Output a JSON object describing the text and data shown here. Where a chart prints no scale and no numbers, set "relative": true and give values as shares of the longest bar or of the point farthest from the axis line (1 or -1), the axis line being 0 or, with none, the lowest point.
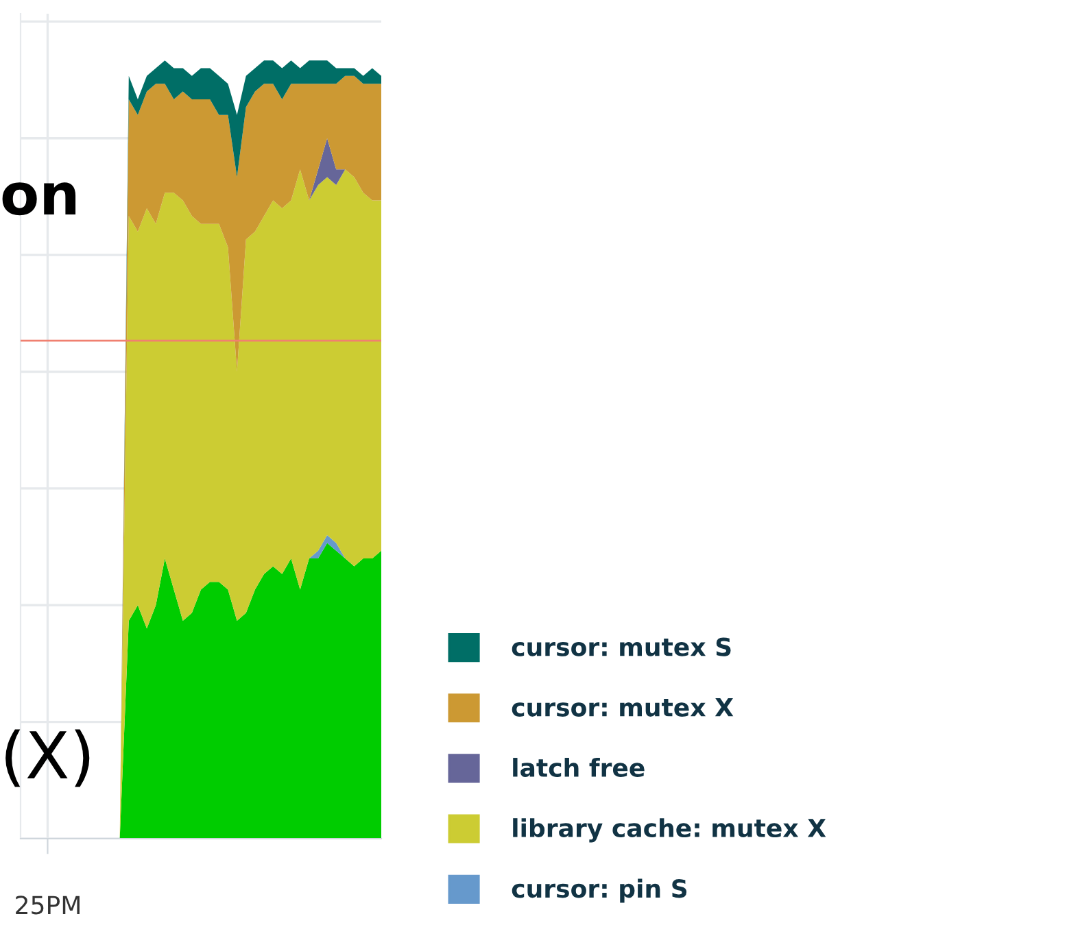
{
  "chart_data": {
    "type": "area",
    "stacked": true,
    "relative": true,
    "title": "on",
    "annotations": [
      "(X)",
      "25PM"
    ],
    "categories": [
      null,
      null,
      null,
      null,
      null,
      null,
      null,
      null,
      null,
      null,
      null,
      null,
      null,
      null,
      null,
      null,
      null,
      null,
      null,
      null,
      null,
      null,
      null,
      null,
      null,
      null,
      null,
      null,
      null,
      null,
      null,
      null,
      null,
      null,
      null,
      null,
      null,
      null
    ],
    "series": [
      {
        "color": "#00cc00",
        "values": [
          null,
          null,
          null,
          null,
          null,
          null,
          null,
          null,
          0,
          0.28,
          0.3,
          0.27,
          0.3,
          0.36,
          0.32,
          0.28,
          0.29,
          0.32,
          0.33,
          0.33,
          0.32,
          0.28,
          0.29,
          0.32,
          0.34,
          0.35,
          0.34,
          0.36,
          0.32,
          0.36,
          0.36,
          0.38,
          0.37,
          0.36,
          0.35,
          0.36,
          0.36,
          0.37
        ]
      },
      {
        "name": "cursor: pin S",
        "color": "#6699cc",
        "values": [
          null,
          null,
          null,
          null,
          null,
          null,
          null,
          null,
          0,
          0,
          0,
          0,
          0,
          0,
          0,
          0,
          0,
          0,
          0,
          0,
          0,
          0,
          0,
          0,
          0,
          0,
          0,
          0,
          0,
          0,
          0.01,
          0.01,
          0.01,
          0,
          0,
          0,
          0,
          0
        ]
      },
      {
        "name": "library cache: mutex X",
        "color": "#cccc33",
        "values": [
          null,
          null,
          null,
          null,
          null,
          null,
          null,
          null,
          0,
          0.52,
          0.48,
          0.54,
          0.49,
          0.47,
          0.51,
          0.54,
          0.51,
          0.47,
          0.46,
          0.46,
          0.44,
          0.32,
          0.48,
          0.46,
          0.46,
          0.47,
          0.47,
          0.46,
          0.54,
          0.46,
          0.47,
          0.46,
          0.46,
          0.5,
          0.5,
          0.47,
          0.46,
          0.45
        ]
      },
      {
        "name": "latch free",
        "color": "#666699",
        "values": [
          null,
          null,
          null,
          null,
          null,
          null,
          null,
          null,
          0,
          0,
          0,
          0,
          0,
          0,
          0,
          0,
          0,
          0,
          0,
          0,
          0,
          0,
          0,
          0,
          0,
          0,
          0,
          0,
          0,
          0,
          0.02,
          0.05,
          0.02,
          0,
          0,
          0,
          0,
          0
        ]
      },
      {
        "name": "cursor: mutex X",
        "color": "#cc9933",
        "values": [
          null,
          null,
          null,
          null,
          null,
          null,
          null,
          null,
          0,
          0.15,
          0.15,
          0.15,
          0.18,
          0.14,
          0.12,
          0.14,
          0.15,
          0.16,
          0.16,
          0.14,
          0.17,
          0.25,
          0.17,
          0.18,
          0.17,
          0.15,
          0.14,
          0.15,
          0.11,
          0.15,
          0.11,
          0.07,
          0.11,
          0.12,
          0.13,
          0.14,
          0.15,
          0.15
        ]
      },
      {
        "name": "cursor: mutex S",
        "color": "#006e66",
        "values": [
          null,
          null,
          null,
          null,
          null,
          null,
          null,
          null,
          0,
          0.03,
          0.02,
          0.02,
          0.02,
          0.03,
          0.04,
          0.03,
          0.03,
          0.04,
          0.04,
          0.05,
          0.04,
          0.08,
          0.04,
          0.03,
          0.03,
          0.03,
          0.04,
          0.03,
          0.02,
          0.03,
          0.03,
          0.03,
          0.02,
          0.01,
          0.01,
          0.01,
          0.02,
          0.01
        ]
      }
    ],
    "ref_lines": [
      {
        "axis": "y",
        "value": 0.64,
        "color": "#f08070"
      }
    ],
    "grid": true,
    "legend": "right"
  }
}
